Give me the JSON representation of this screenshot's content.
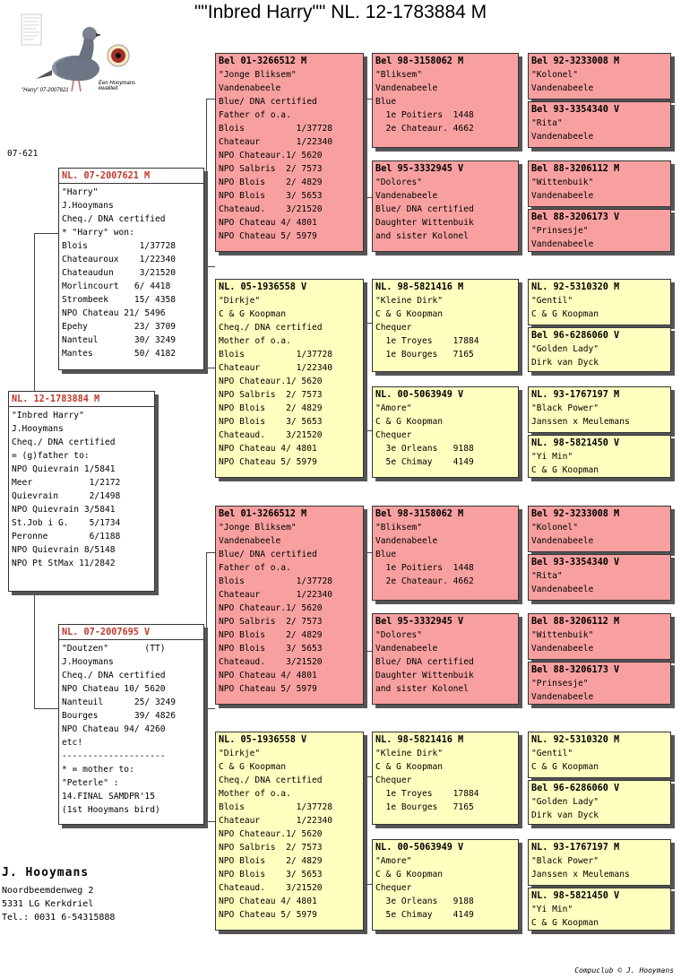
{
  "title": "\"\"Inbred Harry\"\"  NL. 12-1783884 M",
  "code": "07-621",
  "owner": {
    "name": "J. Hooymans",
    "address1": "Noordbeemdenweg 2",
    "address2": "5331 LG  Kerkdriel",
    "tel": "Tel.: 0031 6-54315888"
  },
  "copyright": "Compuclub © J. Hooymans",
  "subject": {
    "ring": "NL. 12-1783884 M",
    "lines": [
      "\"Inbred Harry\"",
      "J.Hooymans",
      "Cheq./ DNA certified",
      "= (g)father to:",
      "NPO Quievrain 1/5841",
      "Meer           1/2172",
      "Quievrain      2/1498",
      "NPO Quievrain 3/5841",
      "St.Job i G.    5/1734",
      "Peronne        6/1188",
      "NPO Quievrain 8/5148",
      "NPO Pt StMax 11/2842"
    ]
  },
  "sire": {
    "ring": "NL. 07-2007621 M",
    "lines": [
      "\"Harry\"",
      "J.Hooymans",
      "Cheq./ DNA certified",
      "* \"Harry\" won:",
      "Blois          1/37728",
      "Chateauroux    1/22340",
      "Chateaudun     3/21520",
      "Morlincourt   6/ 4418",
      "Strombeek     15/ 4358",
      "NPO Chateau 21/ 5496",
      "Epehy         23/ 3709",
      "Nanteul       30/ 3249",
      "Mantes        50/ 4182"
    ]
  },
  "dam": {
    "ring": "NL. 07-2007695 V",
    "lines": [
      "\"Doutzen\"       (TT)",
      "J.Hooymans",
      "Cheq./ DNA certified",
      "NPO Chateau 10/ 5620",
      "Nanteuil      25/ 3249",
      "Bourges       39/ 4826",
      "NPO Chateau 94/ 4260",
      "etc!",
      "--------------------",
      "* = mother to:",
      "\"Peterle\" :",
      "14.FINAL SAMDPR'15",
      "(1st Hooymans bird)"
    ]
  },
  "gp_bliksem": {
    "ring": "Bel 01-3266512 M",
    "lines": [
      "\"Jonge Bliksem\"",
      "Vandenabeele",
      "Blue/ DNA certified",
      "Father of o.a.",
      "Blois          1/37728",
      "Chateaur       1/22340",
      "NPO Chateaur.1/ 5620",
      "NPO Salbris  2/ 7573",
      "NPO Blois    2/ 4829",
      "NPO Blois    3/ 5653",
      "Chateaud.    3/21520",
      "NPO Chateau 4/ 4801",
      "NPO Chateau 5/ 5979"
    ]
  },
  "gp_dirkje": {
    "ring": "NL. 05-1936558 V",
    "lines": [
      "\"Dirkje\"",
      "C & G Koopman",
      "Cheq./ DNA certified",
      "Mother of o.a.",
      "Blois          1/37728",
      "Chateaur       1/22340",
      "NPO Chateaur.1/ 5620",
      "NPO Salbris  2/ 7573",
      "NPO Blois    2/ 4829",
      "NPO Blois    3/ 5653",
      "Chateaud.    3/21520",
      "NPO Chateau 4/ 4801",
      "NPO Chateau 5/ 5979"
    ]
  },
  "ggp": {
    "bliksem": {
      "ring": "Bel 98-3158062 M",
      "lines": [
        "\"Bliksem\"",
        "Vandenabeele",
        "Blue",
        "  1e Poitiers  1448",
        "  2e Chateaur. 4662"
      ]
    },
    "dolores": {
      "ring": "Bel 95-3332945 V",
      "lines": [
        "\"Dolores\"",
        "Vandenabeele",
        "Blue/ DNA certified",
        "Daughter Wittenbuik",
        "and sister Kolonel"
      ]
    },
    "kleine_dirk": {
      "ring": "NL. 98-5821416 M",
      "lines": [
        "\"Kleine Dirk\"",
        "C & G Koopman",
        "Chequer",
        "  1e Troyes    17884",
        "  1e Bourges   7165"
      ]
    },
    "amore": {
      "ring": "NL. 00-5063949 V",
      "lines": [
        "\"Amore\"",
        "C & G Koopman",
        "Chequer",
        "  3e Orleans   9188",
        "  5e Chimay    4149"
      ]
    }
  },
  "gggp": {
    "kolonel": {
      "ring": "Bel 92-3233008 M",
      "lines": [
        "\"Kolonel\"",
        "Vandenabeele"
      ]
    },
    "rita": {
      "ring": "Bel 93-3354340 V",
      "lines": [
        "\"Rita\"",
        "Vandenabeele"
      ]
    },
    "wittenbuik": {
      "ring": "Bel 88-3206112 M",
      "lines": [
        "\"Wittenbuik\"",
        "Vandenabeele"
      ]
    },
    "prinsesje": {
      "ring": "Bel 88-3206173 V",
      "lines": [
        "\"Prinsesje\"",
        "Vandenabeele"
      ]
    },
    "gentil": {
      "ring": "NL. 92-5310320 M",
      "lines": [
        "\"Gentil\"",
        "C & G Koopman"
      ]
    },
    "golden_lady": {
      "ring": "Bel 96-6286060 V",
      "lines": [
        "\"Golden Lady\"",
        "Dirk van Dyck"
      ]
    },
    "black_power": {
      "ring": "NL. 93-1767197 M",
      "lines": [
        "\"Black Power\"",
        "Janssen x Meulemans"
      ]
    },
    "yi_min": {
      "ring": "NL. 98-5821450 V",
      "lines": [
        "\"Yi Min\"",
        "C & G Koopman"
      ]
    }
  },
  "logo": {
    "caption_left": "\"Harry\" 07-2007621",
    "caption_right": "Een Hooymans kwaliteit"
  },
  "colors": {
    "red_box": "#f8a0a0",
    "yellow_box": "#ffffc0",
    "ring_red": "#c0392b"
  }
}
